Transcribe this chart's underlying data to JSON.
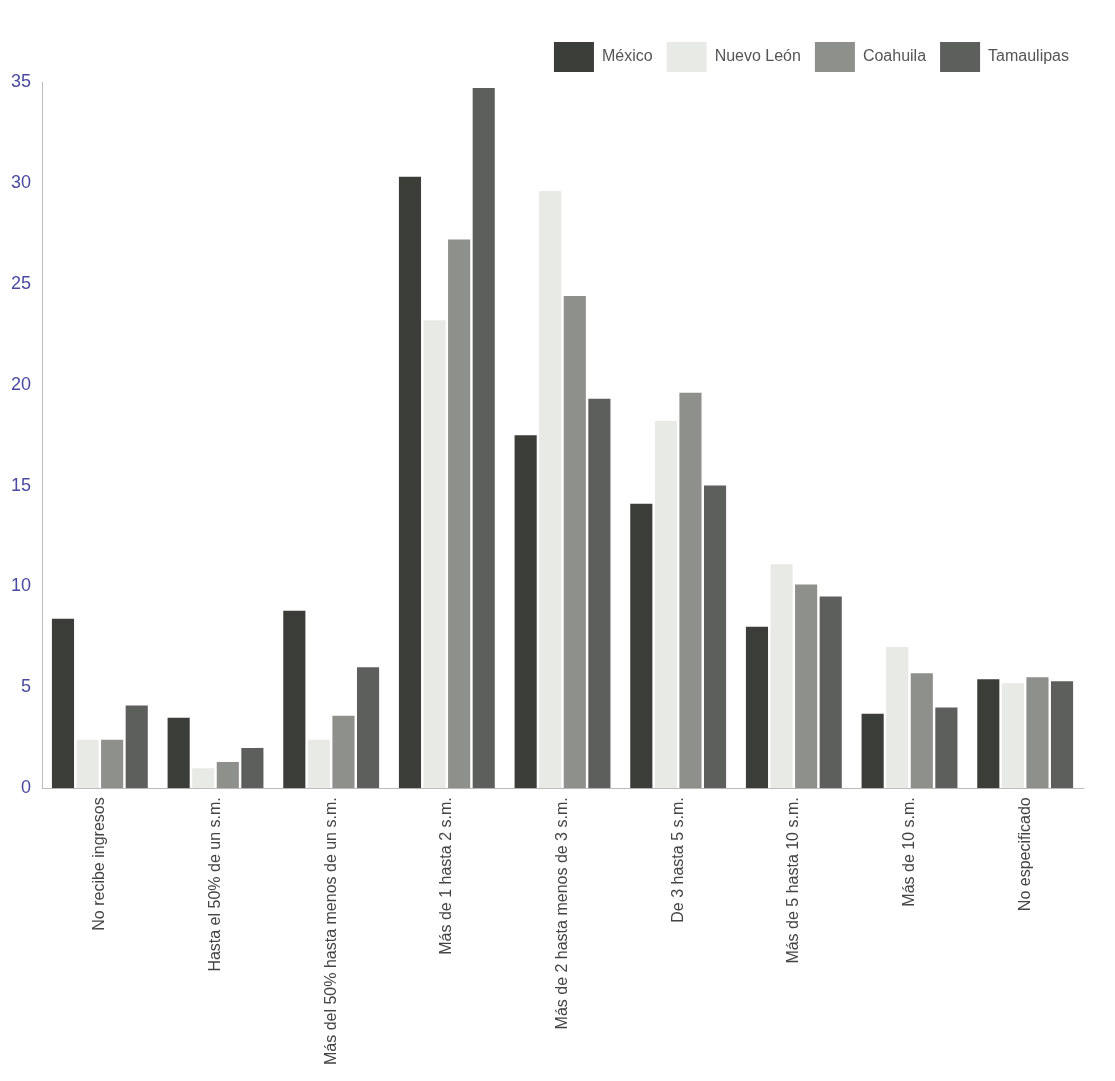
{
  "chart_data": {
    "type": "bar",
    "categories": [
      "No recibe ingresos",
      "Hasta el 50% de un s.m.",
      "Más del 50% hasta menos de un s.m.",
      "Más de 1 hasta 2 s.m.",
      "Más de 2 hasta menos de 3 s.m.",
      "De 3 hasta 5 s.m.",
      "Más de 5 hasta 10 s.m.",
      "Más de 10 s.m.",
      "No especificado"
    ],
    "series": [
      {
        "name": "México",
        "color": "#3a3d38",
        "values": [
          8.4,
          3.5,
          8.8,
          30.3,
          17.5,
          14.1,
          8.0,
          3.7,
          5.4
        ]
      },
      {
        "name": "Nuevo León",
        "color": "#e8eae6",
        "values": [
          2.4,
          1.0,
          2.4,
          23.2,
          29.6,
          18.2,
          11.1,
          7.0,
          5.2
        ]
      },
      {
        "name": "Coahuila",
        "color": "#8e908c",
        "values": [
          2.4,
          1.3,
          3.6,
          27.2,
          24.4,
          19.6,
          10.1,
          5.7,
          5.5
        ]
      },
      {
        "name": "Tamaulipas",
        "color": "#5d5f5c",
        "values": [
          4.1,
          2.0,
          6.0,
          34.7,
          19.3,
          15.0,
          9.5,
          4.0,
          5.3
        ]
      }
    ],
    "ylim": [
      0,
      35
    ],
    "yticks": [
      0,
      5,
      10,
      15,
      20,
      25,
      30,
      35
    ],
    "grid": false,
    "legend": "top right"
  }
}
